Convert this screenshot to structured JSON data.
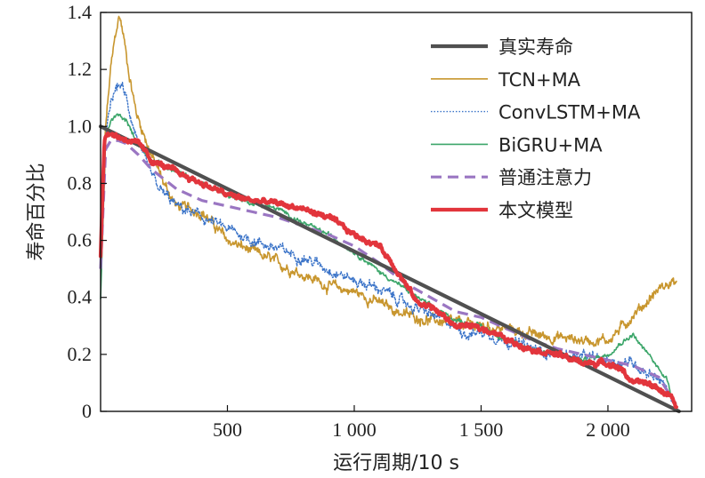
{
  "chart_data": {
    "type": "line",
    "xlabel": "运行周期/10 s",
    "ylabel": "寿命百分比",
    "xlim": [
      0,
      2330
    ],
    "ylim": [
      0,
      1.4
    ],
    "x_ticks": [
      500,
      1000,
      1500,
      2000
    ],
    "x_tick_labels": [
      "500",
      "1 000",
      "1 500",
      "2 000"
    ],
    "y_ticks": [
      0,
      0.2,
      0.4,
      0.6,
      0.8,
      1.0,
      1.2,
      1.4
    ],
    "y_tick_labels": [
      "0",
      "0.2",
      "0.4",
      "0.6",
      "0.8",
      "1.0",
      "1.2",
      "1.4"
    ],
    "legend_position": "top-right",
    "series": [
      {
        "name": "真实寿命",
        "color": "#505050",
        "style": "solid-thick",
        "x": [
          0,
          2280
        ],
        "y": [
          1.0,
          0.0
        ]
      },
      {
        "name": "TCN+MA",
        "color": "#c8962e",
        "style": "solid",
        "noise": 0.02,
        "x": [
          0,
          20,
          40,
          60,
          75,
          90,
          110,
          140,
          200,
          250,
          300,
          400,
          500,
          600,
          700,
          800,
          900,
          1000,
          1100,
          1200,
          1300,
          1400,
          1500,
          1600,
          1700,
          1800,
          1900,
          2000,
          2050,
          2100,
          2150,
          2200,
          2250,
          2270
        ],
        "y": [
          0.55,
          1.0,
          1.2,
          1.33,
          1.39,
          1.32,
          1.2,
          1.05,
          0.9,
          0.8,
          0.72,
          0.7,
          0.6,
          0.56,
          0.52,
          0.48,
          0.44,
          0.42,
          0.38,
          0.34,
          0.32,
          0.31,
          0.3,
          0.29,
          0.27,
          0.26,
          0.25,
          0.25,
          0.29,
          0.34,
          0.38,
          0.43,
          0.45,
          0.46
        ]
      },
      {
        "name": "ConvLSTM+MA",
        "color": "#3a73c8",
        "style": "dotted",
        "noise": 0.02,
        "x": [
          0,
          20,
          40,
          60,
          80,
          100,
          130,
          170,
          230,
          300,
          400,
          500,
          600,
          700,
          800,
          900,
          1000,
          1100,
          1200,
          1300,
          1400,
          1450,
          1500,
          1600,
          1700,
          1800,
          1900,
          2000,
          2100,
          2150,
          2200,
          2250,
          2270
        ],
        "y": [
          0.5,
          0.95,
          1.08,
          1.13,
          1.15,
          1.1,
          1.0,
          0.88,
          0.78,
          0.72,
          0.68,
          0.64,
          0.6,
          0.57,
          0.54,
          0.5,
          0.46,
          0.43,
          0.38,
          0.34,
          0.3,
          0.27,
          0.28,
          0.25,
          0.22,
          0.2,
          0.19,
          0.18,
          0.17,
          0.14,
          0.12,
          0.05,
          0.02
        ]
      },
      {
        "name": "BiGRU+MA",
        "color": "#3ca66a",
        "style": "solid",
        "noise": 0.008,
        "x": [
          0,
          20,
          40,
          70,
          100,
          140,
          180,
          250,
          300,
          400,
          500,
          600,
          700,
          800,
          900,
          1000,
          1100,
          1200,
          1300,
          1400,
          1500,
          1600,
          1700,
          1800,
          1900,
          2000,
          2050,
          2100,
          2130,
          2160,
          2200,
          2230,
          2250
        ],
        "y": [
          0.4,
          0.95,
          1.02,
          1.04,
          1.02,
          0.95,
          0.9,
          0.86,
          0.84,
          0.8,
          0.76,
          0.73,
          0.71,
          0.66,
          0.62,
          0.56,
          0.49,
          0.43,
          0.37,
          0.32,
          0.3,
          0.25,
          0.22,
          0.2,
          0.18,
          0.2,
          0.24,
          0.27,
          0.23,
          0.2,
          0.15,
          0.12,
          0.05
        ]
      },
      {
        "name": "普通注意力",
        "color": "#9a76c2",
        "style": "dashed",
        "noise": 0.0,
        "x": [
          0,
          20,
          40,
          70,
          100,
          150,
          200,
          300,
          400,
          500,
          600,
          700,
          800,
          900,
          1000,
          1100,
          1200,
          1300,
          1400,
          1500,
          1600,
          1700,
          1800,
          1900,
          2000,
          2100,
          2150,
          2200,
          2250,
          2270
        ],
        "y": [
          0.5,
          0.92,
          0.95,
          0.95,
          0.94,
          0.9,
          0.85,
          0.78,
          0.74,
          0.72,
          0.7,
          0.68,
          0.65,
          0.62,
          0.58,
          0.52,
          0.45,
          0.4,
          0.35,
          0.33,
          0.29,
          0.25,
          0.22,
          0.2,
          0.18,
          0.16,
          0.14,
          0.12,
          0.05,
          0.01
        ]
      },
      {
        "name": "本文模型",
        "color": "#e2353c",
        "style": "solid-thick",
        "noise": 0.01,
        "x": [
          0,
          15,
          30,
          50,
          80,
          120,
          160,
          200,
          300,
          400,
          500,
          600,
          700,
          800,
          900,
          1000,
          1100,
          1150,
          1200,
          1250,
          1300,
          1400,
          1450,
          1500,
          1550,
          1600,
          1700,
          1800,
          1900,
          2000,
          2050,
          2100,
          2150,
          2200,
          2250,
          2270
        ],
        "y": [
          0.55,
          0.96,
          0.98,
          0.97,
          0.96,
          0.95,
          0.93,
          0.88,
          0.84,
          0.8,
          0.76,
          0.74,
          0.73,
          0.71,
          0.68,
          0.62,
          0.58,
          0.52,
          0.45,
          0.38,
          0.37,
          0.3,
          0.3,
          0.29,
          0.28,
          0.25,
          0.22,
          0.2,
          0.17,
          0.17,
          0.15,
          0.1,
          0.1,
          0.08,
          0.05,
          0.01
        ]
      }
    ]
  }
}
